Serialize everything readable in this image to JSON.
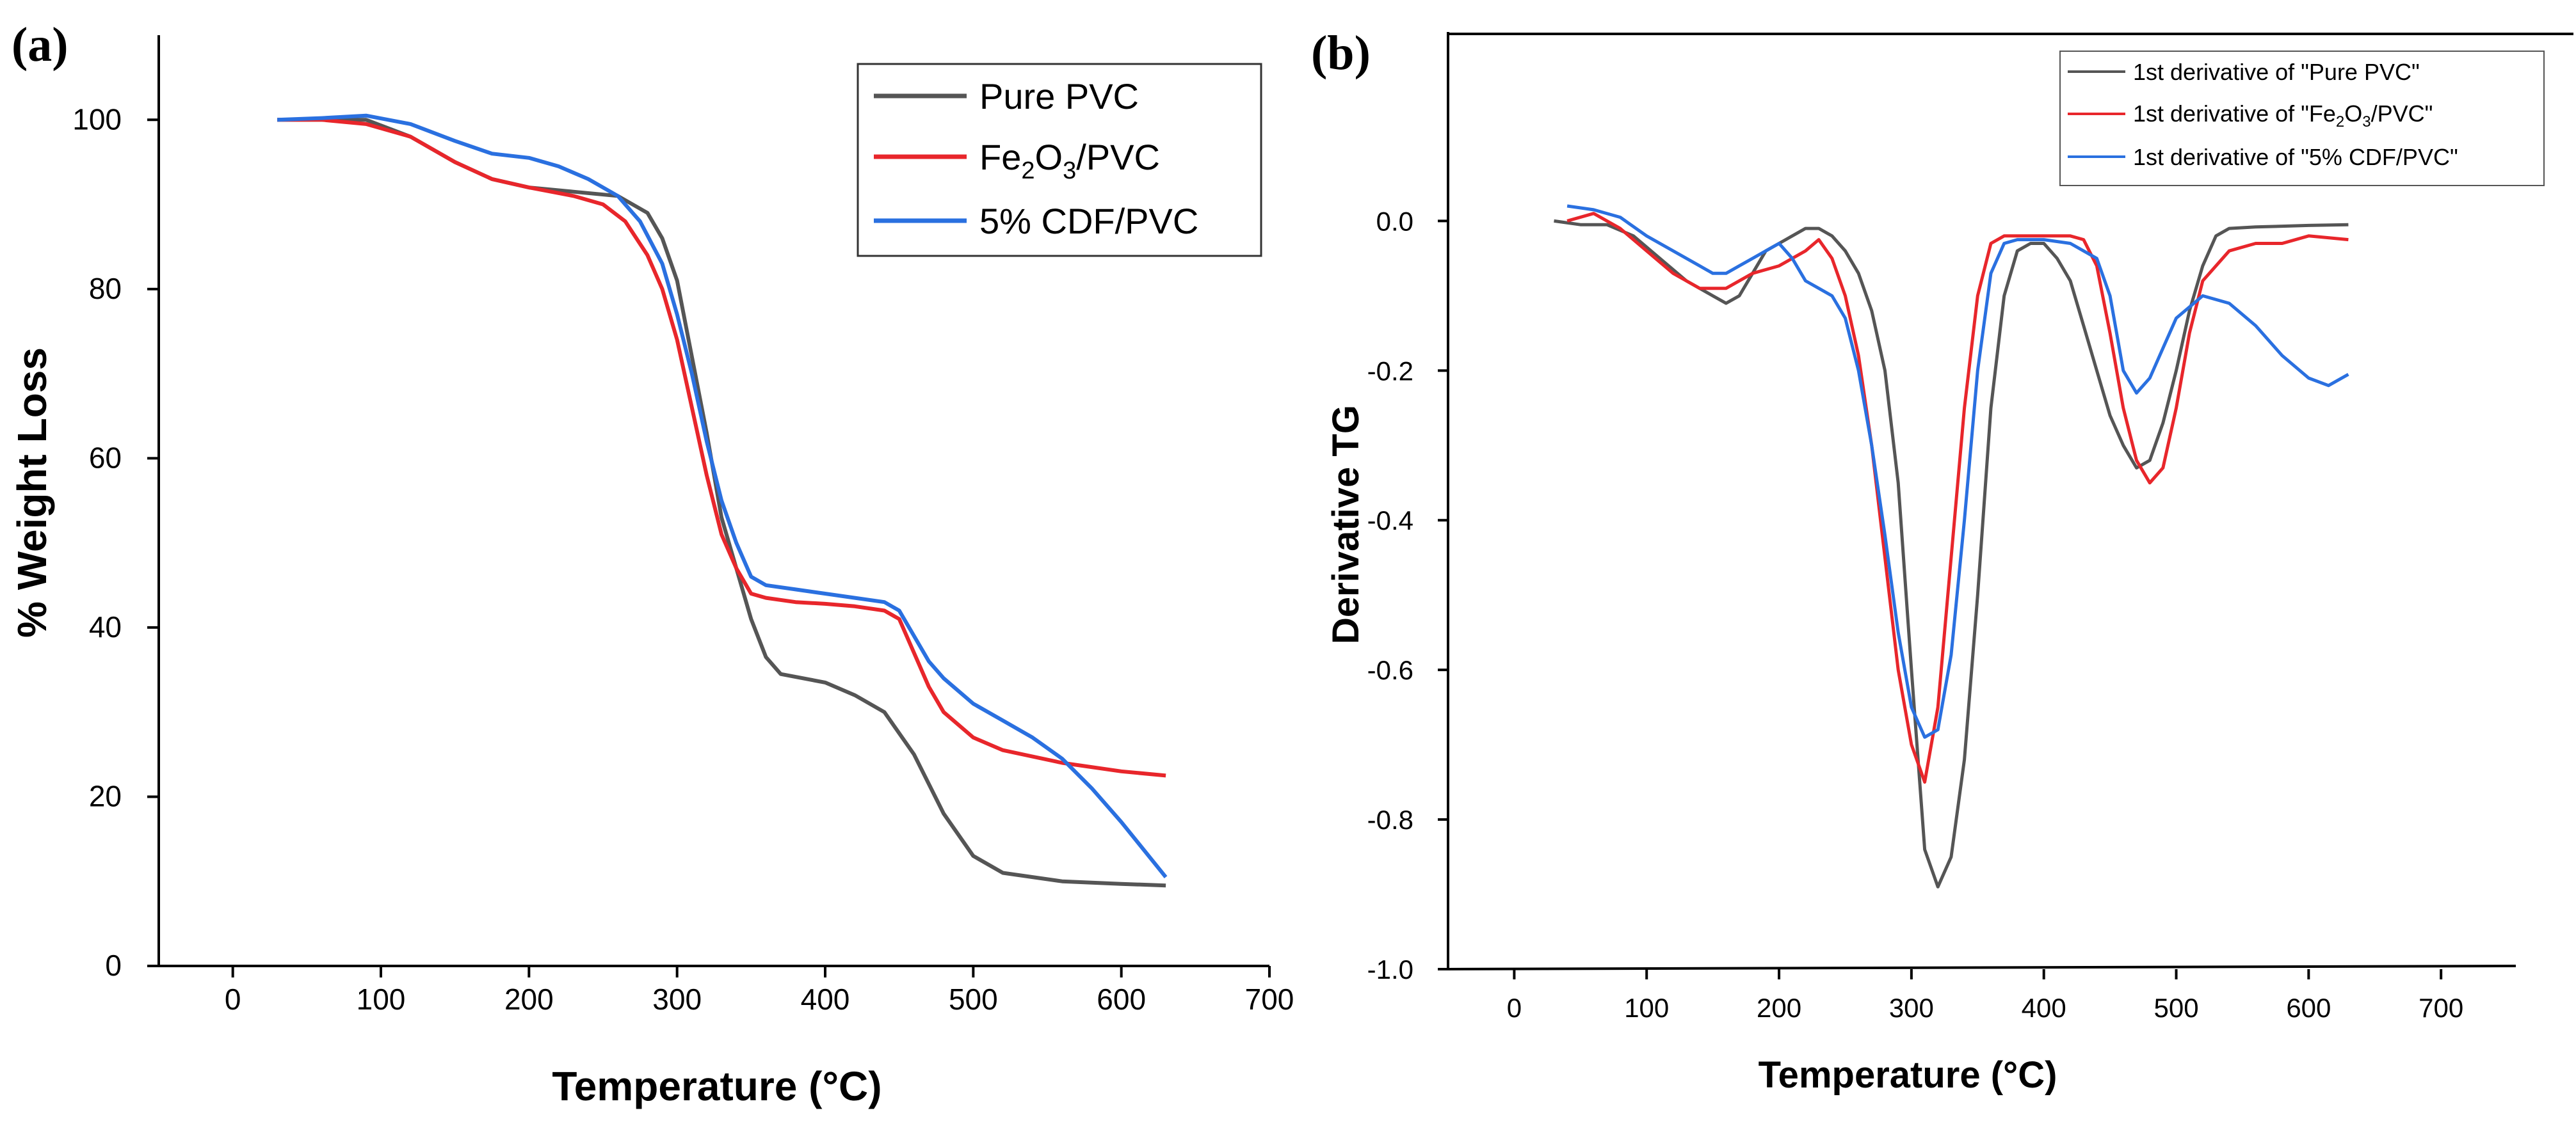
{
  "chart_data": [
    {
      "panel": "(a)",
      "type": "line",
      "xlabel": "Temperature (°C)",
      "ylabel": "% Weight Loss",
      "xlim": [
        -50,
        700
      ],
      "ylim": [
        0,
        110
      ],
      "xticks": [
        0,
        100,
        200,
        300,
        400,
        500,
        600,
        700
      ],
      "yticks": [
        0,
        20,
        40,
        60,
        80,
        100
      ],
      "legend_position": "top-right",
      "colors": {
        "pure": "#555555",
        "fe2o3": "#e8262b",
        "cdf": "#2a70e0"
      },
      "series": [
        {
          "name": "Pure PVC",
          "legend_base": "Pure PVC",
          "legend_sub1": "",
          "legend_mid": "",
          "legend_sub2": "",
          "legend_end": "",
          "x": [
            30,
            60,
            90,
            120,
            150,
            175,
            200,
            230,
            260,
            280,
            290,
            300,
            310,
            320,
            330,
            340,
            350,
            360,
            370,
            400,
            420,
            440,
            460,
            480,
            500,
            520,
            560,
            600,
            630
          ],
          "y": [
            100,
            100,
            100,
            98,
            95,
            93,
            92,
            91.5,
            91,
            89,
            86,
            81,
            72,
            63,
            53,
            47,
            41,
            36.5,
            34.5,
            33.5,
            32,
            30,
            25,
            18,
            13,
            11,
            10,
            9.7,
            9.5
          ]
        },
        {
          "name": "Fe2O3/PVC",
          "legend_base": "Fe",
          "legend_sub1": "2",
          "legend_mid": "O",
          "legend_sub2": "3",
          "legend_end": "/PVC",
          "x": [
            30,
            60,
            90,
            120,
            150,
            175,
            200,
            230,
            250,
            265,
            280,
            290,
            300,
            310,
            320,
            330,
            340,
            350,
            360,
            380,
            400,
            420,
            440,
            450,
            460,
            470,
            480,
            500,
            520,
            560,
            600,
            630
          ],
          "y": [
            100,
            100,
            99.5,
            98,
            95,
            93,
            92,
            91,
            90,
            88,
            84,
            80,
            74,
            66,
            58,
            51,
            47,
            44,
            43.5,
            43,
            42.8,
            42.5,
            42,
            41,
            37,
            33,
            30,
            27,
            25.5,
            24,
            23,
            22.5
          ]
        },
        {
          "name": "5% CDF/PVC",
          "legend_base": "5% CDF/PVC",
          "legend_sub1": "",
          "legend_mid": "",
          "legend_sub2": "",
          "legend_end": "",
          "x": [
            30,
            60,
            90,
            120,
            150,
            175,
            200,
            220,
            240,
            260,
            275,
            290,
            300,
            310,
            320,
            330,
            340,
            350,
            360,
            380,
            400,
            420,
            440,
            450,
            460,
            470,
            480,
            500,
            520,
            540,
            560,
            580,
            600,
            630
          ],
          "y": [
            100,
            100.2,
            100.5,
            99.5,
            97.5,
            96,
            95.5,
            94.5,
            93,
            91,
            88,
            83,
            77,
            70,
            62,
            55,
            50,
            46,
            45,
            44.5,
            44,
            43.5,
            43,
            42,
            39,
            36,
            34,
            31,
            29,
            27,
            24.5,
            21,
            17,
            10.5
          ]
        }
      ]
    },
    {
      "panel": "(b)",
      "type": "line",
      "xlabel": "Temperature (°C)",
      "ylabel": "Derivative TG",
      "xlim": [
        -50,
        800
      ],
      "ylim": [
        -1.0,
        0.25
      ],
      "xticks": [
        0,
        100,
        200,
        300,
        400,
        500,
        600,
        700
      ],
      "yticks": [
        -1.0,
        -0.8,
        -0.6,
        -0.4,
        -0.2,
        0.0
      ],
      "ytick_labels": [
        "-1.0",
        "-0.8",
        "-0.6",
        "-0.4",
        "-0.2",
        "0.0"
      ],
      "legend_position": "top-right",
      "colors": {
        "pure": "#555555",
        "fe2o3": "#e8262b",
        "cdf": "#2a70e0"
      },
      "series": [
        {
          "name": "1st derivative of \"Pure PVC\"",
          "legend_base": "1st derivative of \"Pure PVC\"",
          "legend_sub1": "",
          "legend_mid": "",
          "legend_sub2": "",
          "legend_end": "",
          "x": [
            30,
            50,
            70,
            90,
            110,
            130,
            150,
            160,
            170,
            180,
            190,
            200,
            210,
            220,
            230,
            240,
            250,
            260,
            270,
            280,
            290,
            300,
            310,
            320,
            330,
            340,
            350,
            360,
            370,
            380,
            390,
            400,
            410,
            420,
            430,
            440,
            450,
            460,
            470,
            480,
            490,
            500,
            510,
            520,
            530,
            540,
            560,
            580,
            600,
            630
          ],
          "y": [
            0.0,
            -0.005,
            -0.005,
            -0.02,
            -0.05,
            -0.08,
            -0.1,
            -0.11,
            -0.1,
            -0.07,
            -0.04,
            -0.03,
            -0.02,
            -0.01,
            -0.01,
            -0.02,
            -0.04,
            -0.07,
            -0.12,
            -0.2,
            -0.35,
            -0.6,
            -0.84,
            -0.89,
            -0.85,
            -0.72,
            -0.5,
            -0.25,
            -0.1,
            -0.04,
            -0.03,
            -0.03,
            -0.05,
            -0.08,
            -0.14,
            -0.2,
            -0.26,
            -0.3,
            -0.33,
            -0.32,
            -0.27,
            -0.2,
            -0.12,
            -0.06,
            -0.02,
            -0.01,
            -0.008,
            -0.007,
            -0.006,
            -0.005
          ]
        },
        {
          "name": "1st derivative of \"Fe2O3/PVC\"",
          "legend_base": "1st derivative of \"Fe",
          "legend_sub1": "2",
          "legend_mid": "O",
          "legend_sub2": "3",
          "legend_end": "/PVC\"",
          "x": [
            40,
            60,
            80,
            100,
            120,
            140,
            160,
            180,
            200,
            210,
            220,
            230,
            240,
            250,
            260,
            270,
            280,
            290,
            300,
            310,
            320,
            330,
            340,
            350,
            360,
            370,
            380,
            400,
            420,
            430,
            440,
            450,
            460,
            470,
            480,
            490,
            500,
            510,
            520,
            540,
            560,
            580,
            600,
            630
          ],
          "y": [
            0.0,
            0.01,
            -0.01,
            -0.04,
            -0.07,
            -0.09,
            -0.09,
            -0.07,
            -0.06,
            -0.05,
            -0.04,
            -0.025,
            -0.05,
            -0.1,
            -0.18,
            -0.3,
            -0.45,
            -0.6,
            -0.7,
            -0.75,
            -0.65,
            -0.45,
            -0.25,
            -0.1,
            -0.03,
            -0.02,
            -0.02,
            -0.02,
            -0.02,
            -0.025,
            -0.06,
            -0.15,
            -0.25,
            -0.32,
            -0.35,
            -0.33,
            -0.25,
            -0.15,
            -0.08,
            -0.04,
            -0.03,
            -0.03,
            -0.02,
            -0.025
          ]
        },
        {
          "name": "1st derivative of \"5% CDF/PVC\"",
          "legend_base": "1st derivative of \"5% CDF/PVC\"",
          "legend_sub1": "",
          "legend_mid": "",
          "legend_sub2": "",
          "legend_end": "",
          "x": [
            40,
            60,
            80,
            100,
            120,
            140,
            150,
            160,
            170,
            180,
            190,
            200,
            210,
            220,
            230,
            240,
            250,
            260,
            270,
            280,
            290,
            300,
            310,
            320,
            330,
            340,
            350,
            360,
            370,
            380,
            400,
            420,
            440,
            450,
            460,
            470,
            480,
            490,
            500,
            520,
            540,
            560,
            580,
            600,
            615,
            630
          ],
          "y": [
            0.02,
            0.015,
            0.005,
            -0.02,
            -0.04,
            -0.06,
            -0.07,
            -0.07,
            -0.06,
            -0.05,
            -0.04,
            -0.03,
            -0.05,
            -0.08,
            -0.09,
            -0.1,
            -0.13,
            -0.2,
            -0.3,
            -0.42,
            -0.55,
            -0.65,
            -0.69,
            -0.68,
            -0.58,
            -0.4,
            -0.2,
            -0.07,
            -0.03,
            -0.025,
            -0.025,
            -0.03,
            -0.05,
            -0.1,
            -0.2,
            -0.23,
            -0.21,
            -0.17,
            -0.13,
            -0.1,
            -0.11,
            -0.14,
            -0.18,
            -0.21,
            -0.22,
            -0.205
          ]
        }
      ]
    }
  ]
}
